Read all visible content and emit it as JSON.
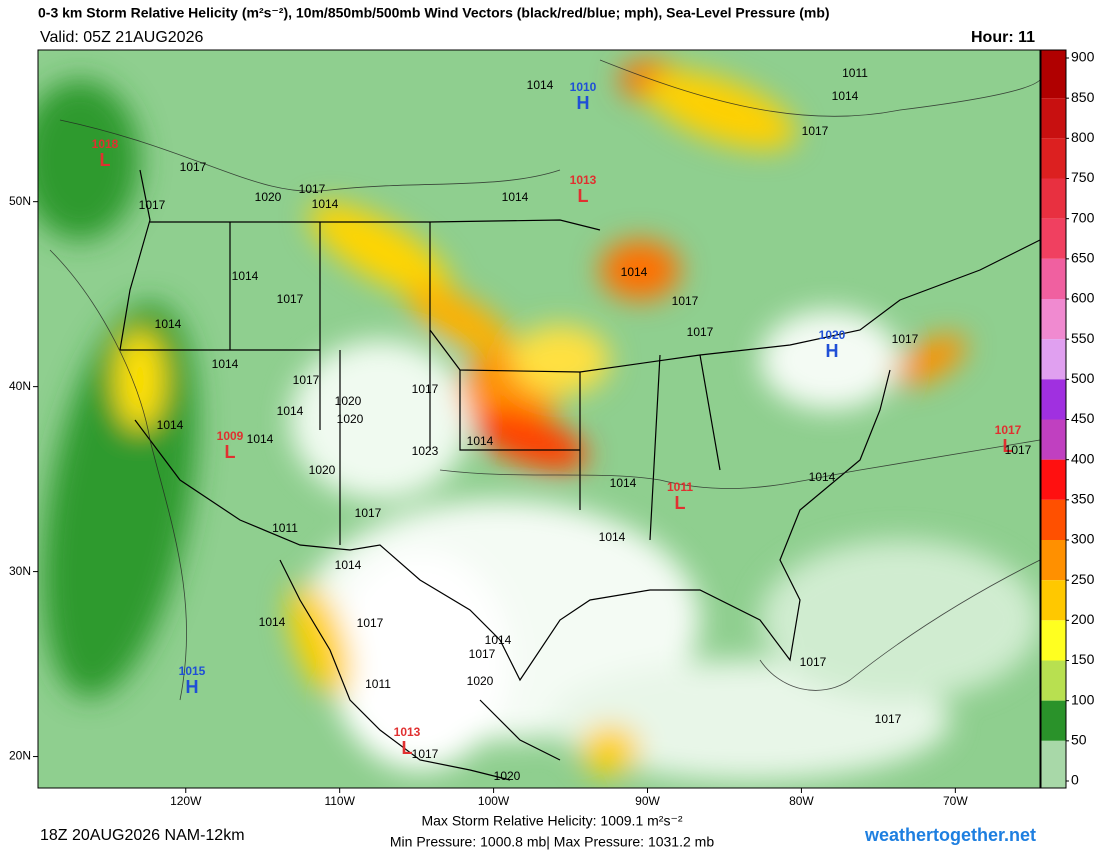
{
  "header": {
    "title": "0-3 km Storm Relative Helicity (m²s⁻²), 10m/850mb/500mb Wind Vectors (black/red/blue; mph), Sea-Level Pressure (mb)",
    "valid": "Valid: 05Z 21AUG2026",
    "hour": "Hour: 11"
  },
  "map": {
    "xlim": [
      -129.6,
      -64.5
    ],
    "ylim": [
      18.3,
      58.2
    ],
    "xticks": [
      {
        "value": -120,
        "label": "120W"
      },
      {
        "value": -110,
        "label": "110W"
      },
      {
        "value": -100,
        "label": "100W"
      },
      {
        "value": -90,
        "label": "90W"
      },
      {
        "value": -80,
        "label": "80W"
      },
      {
        "value": -70,
        "label": "70W"
      }
    ],
    "yticks": [
      {
        "value": 50,
        "label": "50N"
      },
      {
        "value": 40,
        "label": "40N"
      },
      {
        "value": 30,
        "label": "30N"
      },
      {
        "value": 20,
        "label": "20N"
      }
    ],
    "pressure_centers": [
      {
        "symbol": "L",
        "value": "1018"
      },
      {
        "symbol": "H",
        "value": "1010"
      },
      {
        "symbol": "L",
        "value": "1013"
      },
      {
        "symbol": "H",
        "value": "1020"
      },
      {
        "symbol": "L",
        "value": "1009"
      },
      {
        "symbol": "L",
        "value": "1017"
      },
      {
        "symbol": "L",
        "value": "1011"
      },
      {
        "symbol": "H",
        "value": "1015"
      },
      {
        "symbol": "L",
        "value": "1013"
      }
    ],
    "high_color": "#1f4fd6",
    "low_color": "#e03030",
    "isobar_labels": [
      "1014",
      "1011",
      "1014",
      "1017",
      "1017",
      "1017",
      "1020",
      "1017",
      "1014",
      "1014",
      "1014",
      "1017",
      "1014",
      "1014",
      "1017",
      "1017",
      "1017",
      "1014",
      "1017",
      "1017",
      "1020",
      "1014",
      "1020",
      "1014",
      "1014",
      "1014",
      "1023",
      "1017",
      "1020",
      "1014",
      "1014",
      "1011",
      "1017",
      "1014",
      "1014",
      "1014",
      "1017",
      "1014",
      "1017",
      "1020",
      "1011",
      "1017",
      "1017",
      "1017",
      "1020"
    ]
  },
  "colorbar": {
    "ticks": [
      900,
      850,
      800,
      750,
      700,
      650,
      600,
      550,
      500,
      450,
      400,
      350,
      300,
      250,
      200,
      150,
      100,
      50,
      0
    ],
    "colors": [
      "#b00000",
      "#c81010",
      "#dc2020",
      "#e83040",
      "#f04060",
      "#f060a0",
      "#f08ad0",
      "#e0a0f0",
      "#a030e0",
      "#c040c0",
      "#ff1010",
      "#ff5000",
      "#ff9000",
      "#ffc800",
      "#ffff20",
      "#b8e050",
      "#2a922a",
      "#a8d8a8"
    ]
  },
  "footer": {
    "run": "18Z 20AUG2026 NAM-12km",
    "max_helicity": "Max Storm Relative Helicity: 1009.1 m²s⁻²",
    "pressure_range": "Min Pressure: 1000.8 mb| Max Pressure: 1031.2 mb",
    "site": "weathertogether.net"
  }
}
